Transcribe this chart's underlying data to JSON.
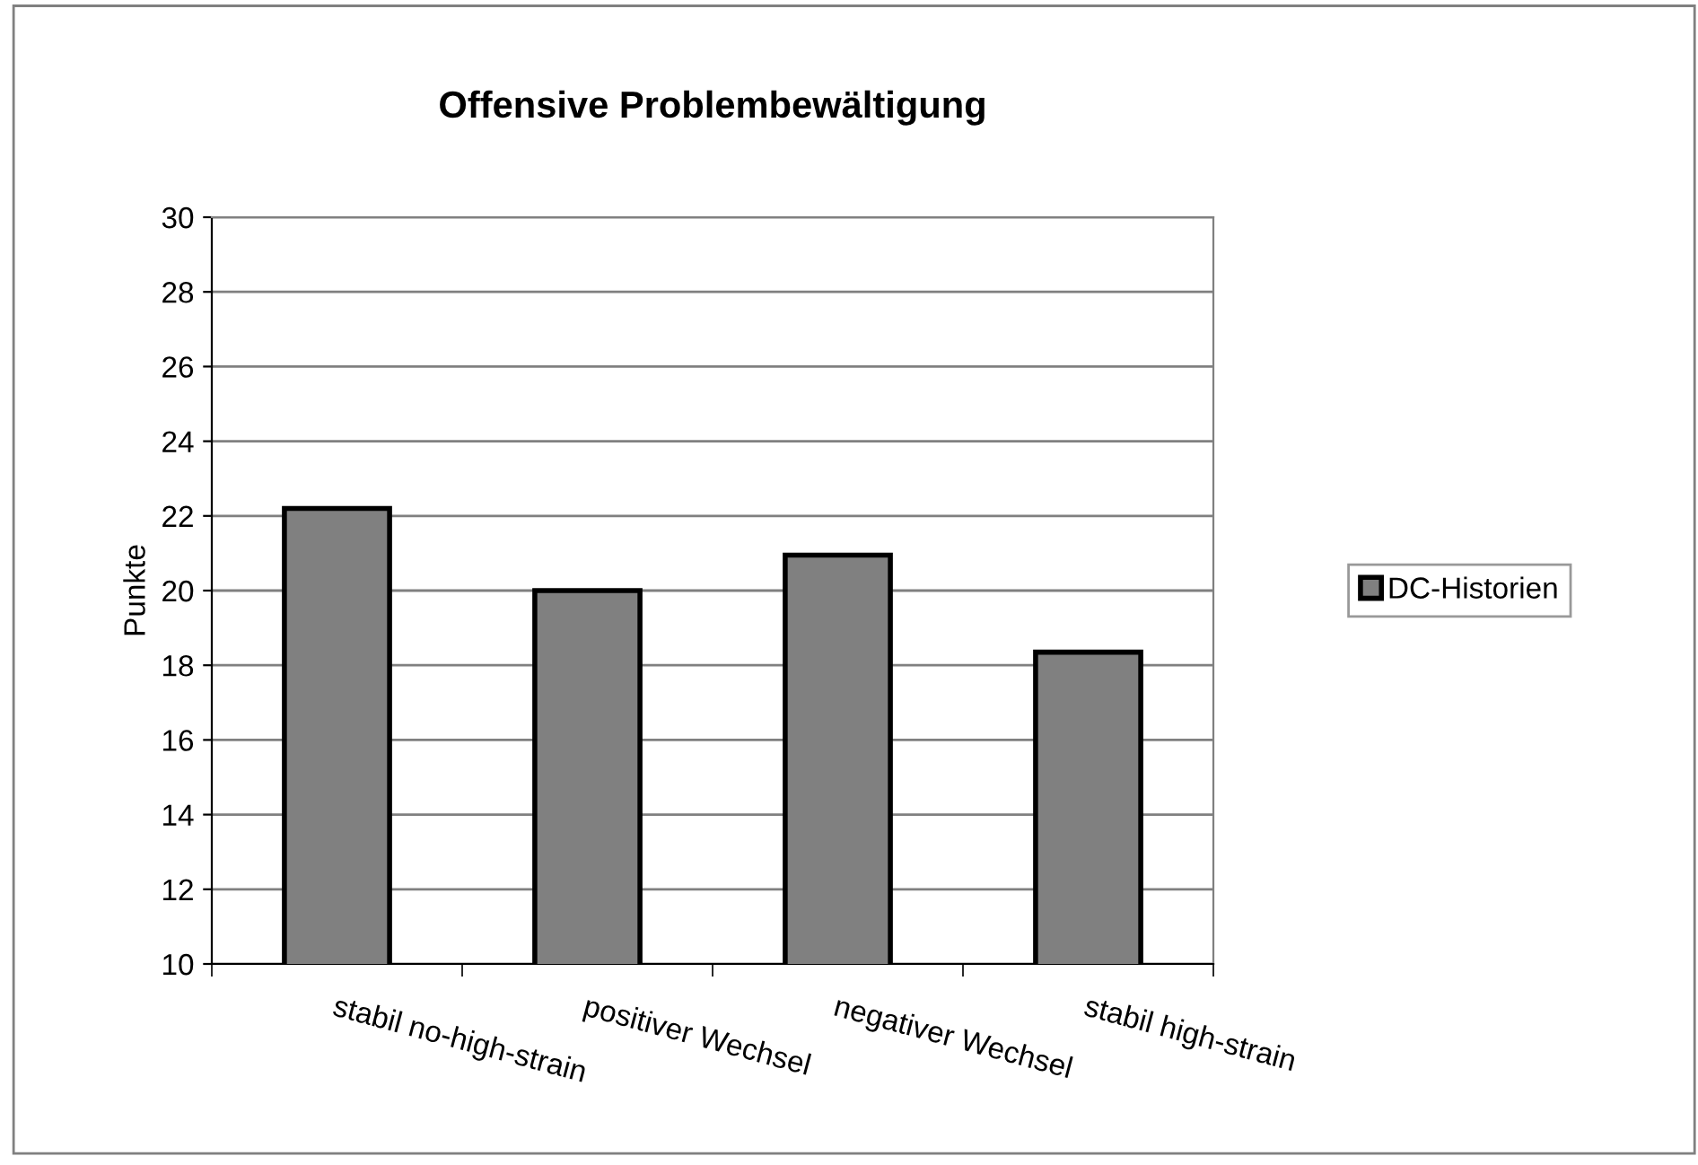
{
  "chart_data": {
    "type": "bar",
    "title": "Offensive Problembewältigung",
    "ylabel": "Punkte",
    "categories": [
      "stabil no-high-strain",
      "positiver Wechsel",
      "negativer Wechsel",
      "stabil high-strain"
    ],
    "series": [
      {
        "name": "DC-Historien",
        "color": "#808080",
        "values": [
          22.2,
          20.0,
          20.95,
          18.35
        ]
      }
    ],
    "ylim": [
      10,
      30
    ],
    "yticks": [
      10,
      12,
      14,
      16,
      18,
      20,
      22,
      24,
      26,
      28,
      30
    ],
    "grid": "y",
    "legend": "right"
  }
}
